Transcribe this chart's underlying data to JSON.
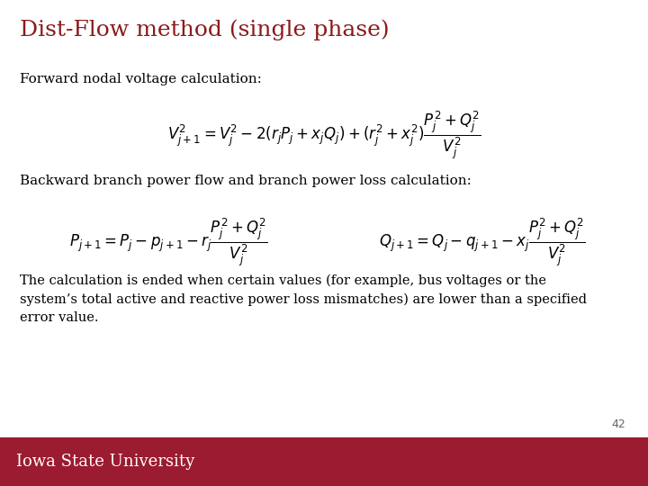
{
  "title": "Dist-Flow method (single phase)",
  "title_color": "#8B1A1A",
  "title_fontsize": 18,
  "bg_color": "#FFFFFF",
  "footer_color": "#9B1B30",
  "footer_text": "Iowa State University",
  "footer_text_color": "#FFFFFF",
  "footer_fontsize": 13,
  "page_number": "42",
  "label1": "Forward nodal voltage calculation:",
  "label2": "Backward branch power flow and branch power loss calculation:",
  "eq1": "$V_{j+1}^{2} = V_{j}^{2} -2(r_j P_j + x_j Q_j) + (r_j^{2} + x_j^{2})\\dfrac{P_j^{2}+Q_j^{2}}{V_j^{2}}$",
  "eq2a": "$P_{j+1} = P_j - p_{j+1} - r_j\\dfrac{P_j^{2}+Q_j^{2}}{V_j^{2}}$",
  "eq2b": "$Q_{j+1} = Q_j - q_{j+1} - x_j\\dfrac{P_j^{2}+Q_j^{2}}{V_j^{2}}$",
  "body_text": "The calculation is ended when certain values (for example, bus voltages or the\nsystem’s total active and reactive power loss mismatches) are lower than a specified\nerror value.",
  "text_color": "#000000",
  "label_fontsize": 11,
  "eq_fontsize": 12,
  "body_fontsize": 10.5
}
